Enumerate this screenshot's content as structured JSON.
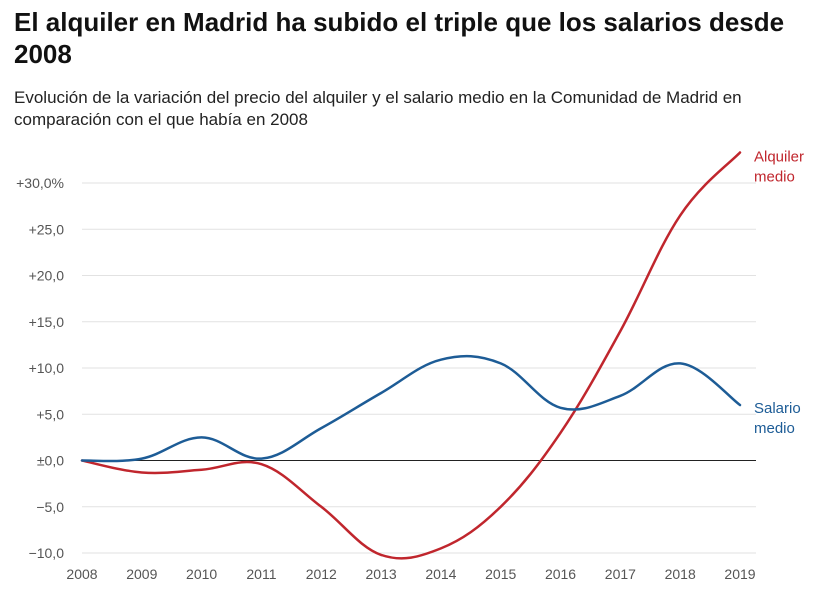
{
  "title": "El alquiler en Madrid ha subido el triple que los salarios desde 2008",
  "subtitle": "Evolución de la variación del precio del alquiler y el salario medio en la Comunidad de Madrid en comparación con el que había en 2008",
  "chart_data": {
    "type": "line",
    "title": "El alquiler en Madrid ha subido el triple que los salarios desde 2008",
    "subtitle": "Evolución de la variación del precio del alquiler y el salario medio en la Comunidad de Madrid en comparación con el que había en 2008",
    "xlabel": "",
    "ylabel": "",
    "ylim": [
      -10,
      30
    ],
    "grid": true,
    "x": [
      2008,
      2009,
      2010,
      2011,
      2012,
      2013,
      2014,
      2015,
      2016,
      2017,
      2018,
      2019
    ],
    "y_ticks": [
      {
        "value": 30,
        "label": "+30,0%"
      },
      {
        "value": 25,
        "label": "+25,0"
      },
      {
        "value": 20,
        "label": "+20,0"
      },
      {
        "value": 15,
        "label": "+15,0"
      },
      {
        "value": 10,
        "label": "+10,0"
      },
      {
        "value": 5,
        "label": "+5,0"
      },
      {
        "value": 0,
        "label": "±0,0"
      },
      {
        "value": -5,
        "label": "−5,0"
      },
      {
        "value": -10,
        "label": "−10,0"
      }
    ],
    "series": [
      {
        "name": "Alquiler medio",
        "label_lines": [
          "Alquiler",
          "medio"
        ],
        "color": "#c0262d",
        "values": [
          0,
          -1.3,
          -1.0,
          -0.4,
          -5.0,
          -10.2,
          -9.5,
          -5.0,
          3.0,
          14.0,
          26.5,
          33.3
        ]
      },
      {
        "name": "Salario medio",
        "label_lines": [
          "Salario",
          "medio"
        ],
        "color": "#1d5c96",
        "values": [
          0,
          0.2,
          2.5,
          0.2,
          3.5,
          7.3,
          10.9,
          10.5,
          5.7,
          7.0,
          10.5,
          6.0
        ]
      }
    ]
  }
}
